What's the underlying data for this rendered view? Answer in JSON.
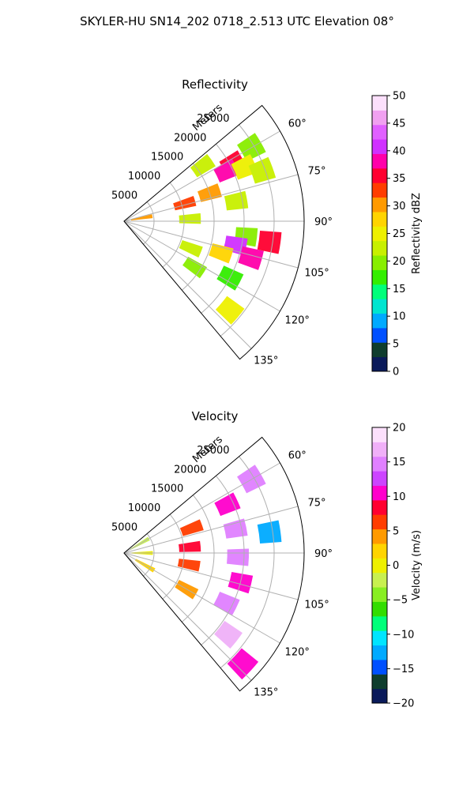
{
  "figure": {
    "suptitle": "SKYLER-HU  SN14_202  0718_2.513 UTC Elevation 08°"
  },
  "chart_data": [
    {
      "type": "heatmap",
      "projection": "polar-sector",
      "title": "Reflectivity",
      "radial_label": "Meters",
      "radial_ticks": [
        "5000",
        "10000",
        "15000",
        "20000",
        "25000"
      ],
      "radial_values": [
        5000,
        10000,
        15000,
        20000,
        25000
      ],
      "rmax": 30000,
      "angle_ticks": [
        "60°",
        "75°",
        "90°",
        "105°",
        "120°",
        "135°"
      ],
      "angle_values": [
        60,
        75,
        90,
        105,
        120,
        135
      ],
      "sector": [
        50,
        140
      ],
      "grid": true,
      "colorbar": {
        "label": "Reflectivity dBZ",
        "range": [
          0,
          50
        ],
        "ticks": [
          "0",
          "5",
          "10",
          "15",
          "20",
          "25",
          "30",
          "35",
          "40",
          "45",
          "50"
        ],
        "tick_values": [
          0,
          5,
          10,
          15,
          20,
          25,
          30,
          35,
          40,
          45,
          50
        ],
        "colors": [
          "#0a1a5a",
          "#0f3d2e",
          "#0050ff",
          "#00aaff",
          "#00e5d0",
          "#00ff7a",
          "#33ee00",
          "#88ee00",
          "#c8f000",
          "#eef000",
          "#ffd400",
          "#ff9a00",
          "#ff3d00",
          "#ff0030",
          "#ff00aa",
          "#d030ff",
          "#e060ff",
          "#f0a0f0",
          "#fce0fc"
        ]
      },
      "cells": [
        {
          "az": 55,
          "r": 16000,
          "value": 22
        },
        {
          "az": 60,
          "r": 24500,
          "value": 20
        },
        {
          "az": 62,
          "r": 20500,
          "value": 35
        },
        {
          "az": 64,
          "r": 19000,
          "value": 38
        },
        {
          "az": 66,
          "r": 22000,
          "value": 24
        },
        {
          "az": 70,
          "r": 24500,
          "value": 22
        },
        {
          "az": 72,
          "r": 15000,
          "value": 30
        },
        {
          "az": 74,
          "r": 10500,
          "value": 34
        },
        {
          "az": 80,
          "r": 19000,
          "value": 23
        },
        {
          "az": 88,
          "r": 11000,
          "value": 22
        },
        {
          "az": 97,
          "r": 20500,
          "value": 21
        },
        {
          "az": 102,
          "r": 19000,
          "value": 41
        },
        {
          "az": 106,
          "r": 22000,
          "value": 38
        },
        {
          "az": 98,
          "r": 24500,
          "value": 36
        },
        {
          "az": 108,
          "r": 17000,
          "value": 28
        },
        {
          "az": 112,
          "r": 12000,
          "value": 22
        },
        {
          "az": 118,
          "r": 20000,
          "value": 18
        },
        {
          "az": 123,
          "r": 14000,
          "value": 20
        },
        {
          "az": 130,
          "r": 23000,
          "value": 24
        },
        {
          "az": 80,
          "r": 3000,
          "value": 30
        }
      ]
    },
    {
      "type": "heatmap",
      "projection": "polar-sector",
      "title": "Velocity",
      "radial_label": "Meters",
      "radial_ticks": [
        "5000",
        "10000",
        "15000",
        "20000",
        "25000"
      ],
      "radial_values": [
        5000,
        10000,
        15000,
        20000,
        25000
      ],
      "rmax": 30000,
      "angle_ticks": [
        "60°",
        "75°",
        "90°",
        "105°",
        "120°",
        "135°"
      ],
      "angle_values": [
        60,
        75,
        90,
        105,
        120,
        135
      ],
      "sector": [
        50,
        140
      ],
      "grid": true,
      "colorbar": {
        "label": "Velocity (m/s)",
        "range": [
          -20,
          20
        ],
        "ticks": [
          "−20",
          "−15",
          "−10",
          "−5",
          "0",
          "5",
          "10",
          "15",
          "20"
        ],
        "tick_values": [
          -20,
          -15,
          -10,
          -5,
          0,
          5,
          10,
          15,
          20
        ],
        "colors": [
          "#0a1a5a",
          "#0f3d2e",
          "#0050ff",
          "#00aaff",
          "#00e5ff",
          "#00ff7a",
          "#33dd00",
          "#88ee22",
          "#c8f050",
          "#eef000",
          "#ffd400",
          "#ff9a00",
          "#ff3d00",
          "#ff0030",
          "#ff00cc",
          "#cc44ff",
          "#e080ff",
          "#f0b0f8",
          "#fce0fc"
        ]
      },
      "cells": [
        {
          "az": 60,
          "r": 3000,
          "value": -2
        },
        {
          "az": 90,
          "r": 3000,
          "value": 1
        },
        {
          "az": 120,
          "r": 4000,
          "value": 2
        },
        {
          "az": 70,
          "r": 12000,
          "value": 6
        },
        {
          "az": 85,
          "r": 11000,
          "value": 8
        },
        {
          "az": 100,
          "r": 11000,
          "value": 7
        },
        {
          "az": 120,
          "r": 12000,
          "value": 4
        },
        {
          "az": 65,
          "r": 19000,
          "value": 10
        },
        {
          "az": 78,
          "r": 19000,
          "value": 14
        },
        {
          "az": 92,
          "r": 19000,
          "value": 15
        },
        {
          "az": 104,
          "r": 20000,
          "value": 11
        },
        {
          "az": 116,
          "r": 19000,
          "value": 14
        },
        {
          "az": 82,
          "r": 24500,
          "value": -12
        },
        {
          "az": 60,
          "r": 24500,
          "value": 15
        },
        {
          "az": 128,
          "r": 22000,
          "value": 16
        },
        {
          "az": 133,
          "r": 27000,
          "value": 10
        }
      ]
    }
  ]
}
